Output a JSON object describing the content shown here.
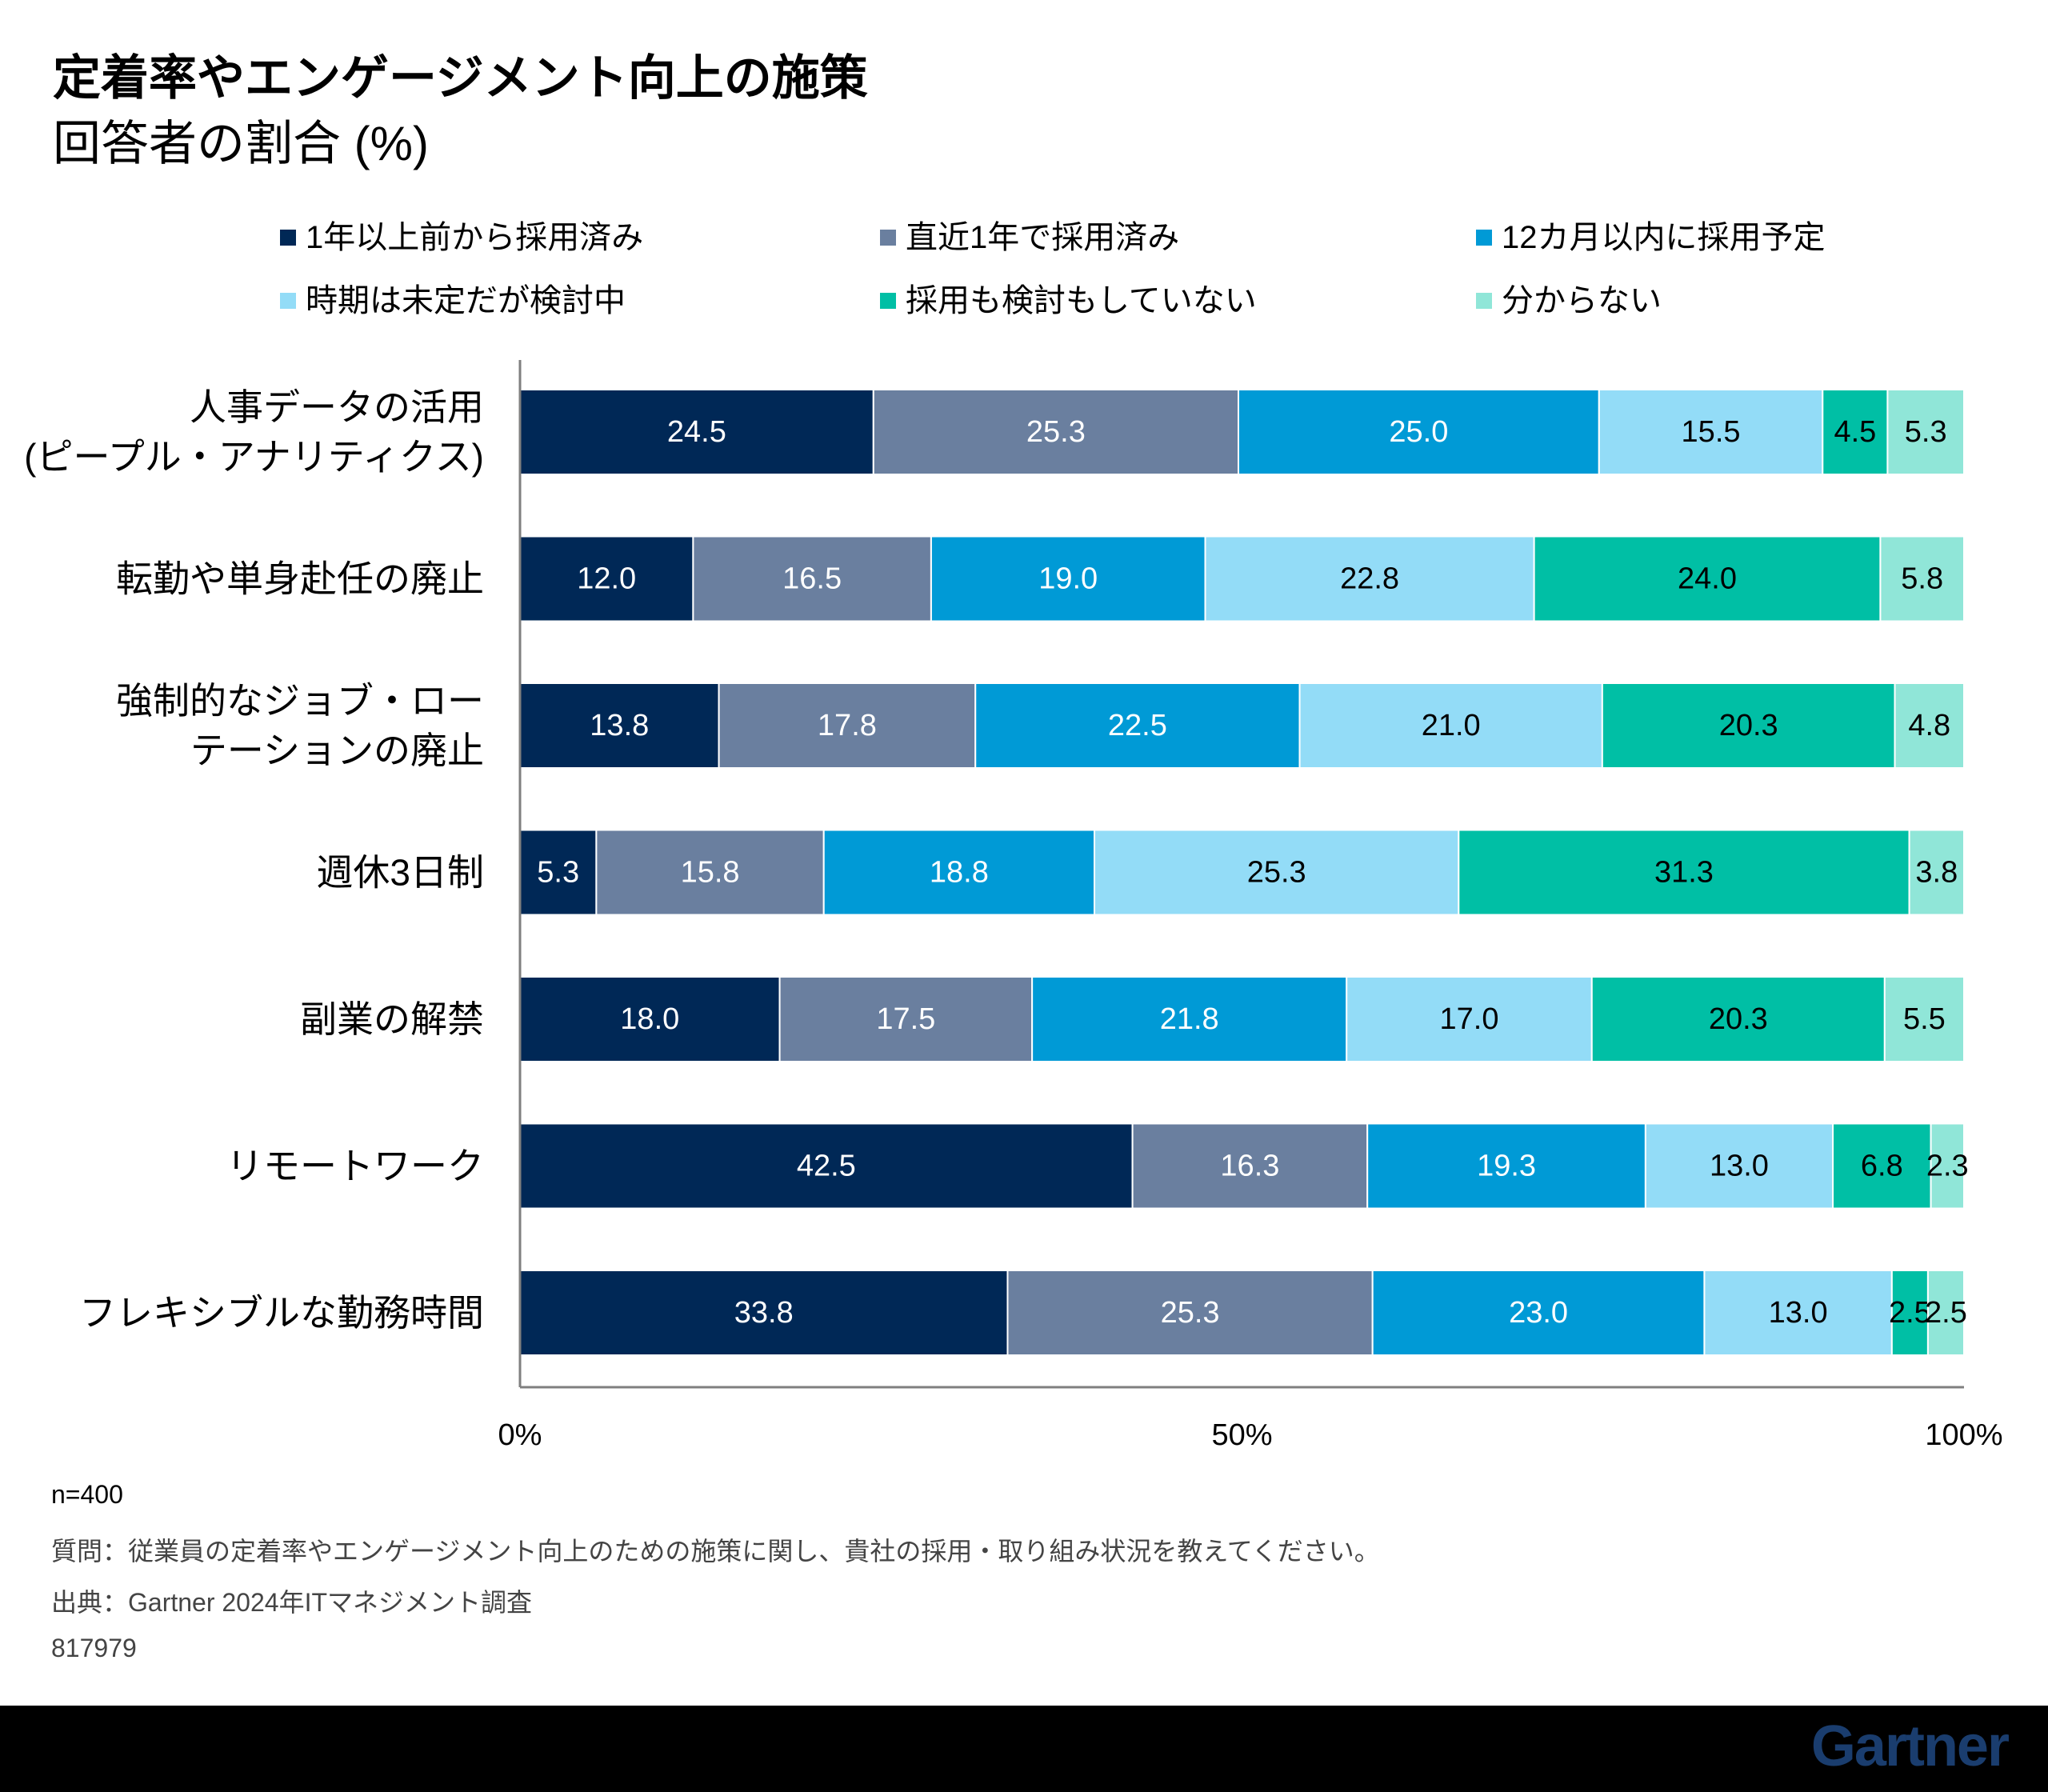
{
  "title": "定着率やエンゲージメント向上の施策",
  "subtitle": "回答者の割合 (%)",
  "colors": [
    "#002856",
    "#6a7f9f",
    "#009ad6",
    "#93dcf7",
    "#00bfa5",
    "#90e6d8"
  ],
  "chart_data": {
    "type": "bar",
    "orientation": "horizontal",
    "stacked": true,
    "legend_position": "top",
    "categories": [
      [
        "人事データの活用",
        "(ピープル・アナリティクス)"
      ],
      [
        "転勤や単身赴任の廃止"
      ],
      [
        "強制的なジョブ・ロー",
        "テーションの廃止"
      ],
      [
        "週休3日制"
      ],
      [
        "副業の解禁"
      ],
      [
        "リモートワーク"
      ],
      [
        "フレキシブルな勤務時間"
      ]
    ],
    "series": [
      {
        "name": "1年以上前から採用済み",
        "values": [
          24.5,
          12.0,
          13.8,
          5.3,
          18.0,
          42.5,
          33.8
        ]
      },
      {
        "name": "直近1年で採用済み",
        "values": [
          25.3,
          16.5,
          17.8,
          15.8,
          17.5,
          16.3,
          25.3
        ]
      },
      {
        "name": "12カ月以内に採用予定",
        "values": [
          25.0,
          19.0,
          22.5,
          18.8,
          21.8,
          19.3,
          23.0
        ]
      },
      {
        "name": "時期は未定だが検討中",
        "values": [
          15.5,
          22.8,
          21.0,
          25.3,
          17.0,
          13.0,
          13.0
        ]
      },
      {
        "name": "採用も検討もしていない",
        "values": [
          4.5,
          24.0,
          20.3,
          31.3,
          20.3,
          6.8,
          2.5
        ]
      },
      {
        "name": "分からない",
        "values": [
          5.3,
          5.8,
          4.8,
          3.8,
          5.5,
          2.3,
          2.5
        ]
      }
    ],
    "xlim": [
      0,
      100
    ],
    "xticks": [
      "0%",
      "50%",
      "100%"
    ],
    "grid": false
  },
  "footnotes": {
    "n": "n=400",
    "question": "質問：従業員の定着率やエンゲージメント向上のための施策に関し、貴社の採用・取り組み状況を教えてください。",
    "source": "出典：Gartner 2024年ITマネジメント調査",
    "id": "817979"
  },
  "brand": "Gartner"
}
